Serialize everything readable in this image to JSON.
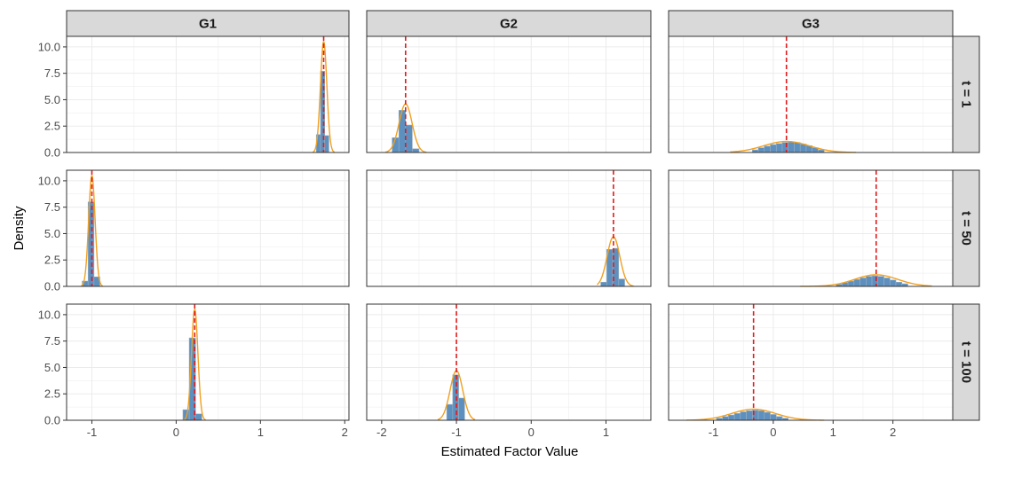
{
  "chart_data": {
    "type": "faceted-histogram-density",
    "xlabel": "Estimated Factor Value",
    "ylabel": "Density",
    "columns": [
      "G1",
      "G2",
      "G3"
    ],
    "rows": [
      "t = 1",
      "t = 50",
      "t = 100"
    ],
    "y_axis": {
      "ylim": [
        0,
        11
      ],
      "ticks": [
        "0.0",
        "2.5",
        "5.0",
        "7.5",
        "10.0"
      ],
      "tick_values": [
        0,
        2.5,
        5,
        7.5,
        10
      ]
    },
    "x_axes": [
      {
        "column": "G1",
        "xlim": [
          -1.3,
          2.05
        ],
        "ticks": [
          "-1",
          "0",
          "1",
          "2"
        ],
        "tick_values": [
          -1,
          0,
          1,
          2
        ]
      },
      {
        "column": "G2",
        "xlim": [
          -2.2,
          1.6
        ],
        "ticks": [
          "-2",
          "-1",
          "0",
          "1"
        ],
        "tick_values": [
          -2,
          -1,
          0,
          1
        ]
      },
      {
        "column": "G3",
        "xlim": [
          -1.75,
          3.0
        ],
        "ticks": [
          "-1",
          "0",
          "1",
          "2"
        ],
        "tick_values": [
          -1,
          0,
          1,
          2
        ]
      }
    ],
    "colors": {
      "bar_fill": "#5d8fbf",
      "bar_border": "#9ab0c2",
      "density_line": "#f0a020",
      "reference_line": "#e31a1c",
      "strip_fill": "#d9d9d9",
      "grid": "#ebebeb"
    },
    "panels": [
      {
        "row": "t = 1",
        "col": "G1",
        "true_value": 1.75,
        "density": {
          "mean": 1.75,
          "sd": 0.038,
          "peak": 10.5,
          "range": [
            1.62,
            1.88
          ]
        },
        "bins": [
          {
            "x0": 1.6625,
            "x1": 1.7125,
            "value": 1.7
          },
          {
            "x0": 1.7125,
            "x1": 1.7625,
            "value": 7.7
          },
          {
            "x0": 1.7625,
            "x1": 1.8125,
            "value": 1.6
          }
        ]
      },
      {
        "row": "t = 1",
        "col": "G2",
        "true_value": -1.68,
        "density": {
          "mean": -1.68,
          "sd": 0.087,
          "peak": 4.6,
          "range": [
            -1.95,
            -1.4
          ]
        },
        "bins": [
          {
            "x0": -1.86,
            "x1": -1.77,
            "value": 1.4
          },
          {
            "x0": -1.77,
            "x1": -1.68,
            "value": 4.0
          },
          {
            "x0": -1.68,
            "x1": -1.59,
            "value": 2.6
          },
          {
            "x0": -1.59,
            "x1": -1.5,
            "value": 0.35
          }
        ]
      },
      {
        "row": "t = 1",
        "col": "G3",
        "true_value": 0.22,
        "density": {
          "mean": 0.22,
          "sd": 0.38,
          "peak": 1.05,
          "range": [
            -0.72,
            1.38
          ]
        },
        "bins": [
          {
            "x0": -0.35,
            "x1": -0.25,
            "value": 0.25
          },
          {
            "x0": -0.25,
            "x1": -0.15,
            "value": 0.45
          },
          {
            "x0": -0.15,
            "x1": -0.05,
            "value": 0.6
          },
          {
            "x0": -0.05,
            "x1": 0.05,
            "value": 0.75
          },
          {
            "x0": 0.05,
            "x1": 0.15,
            "value": 0.85
          },
          {
            "x0": 0.15,
            "x1": 0.25,
            "value": 0.95
          },
          {
            "x0": 0.25,
            "x1": 0.35,
            "value": 1.0
          },
          {
            "x0": 0.35,
            "x1": 0.45,
            "value": 0.95
          },
          {
            "x0": 0.45,
            "x1": 0.55,
            "value": 0.8
          },
          {
            "x0": 0.55,
            "x1": 0.65,
            "value": 0.65
          },
          {
            "x0": 0.65,
            "x1": 0.75,
            "value": 0.45
          },
          {
            "x0": 0.75,
            "x1": 0.85,
            "value": 0.25
          }
        ]
      },
      {
        "row": "t = 50",
        "col": "G1",
        "true_value": -1.0,
        "density": {
          "mean": -1.0,
          "sd": 0.038,
          "peak": 10.5,
          "range": [
            -1.13,
            -0.87
          ]
        },
        "bins": [
          {
            "x0": -1.115,
            "x1": -1.045,
            "value": 0.5
          },
          {
            "x0": -1.045,
            "x1": -0.975,
            "value": 8.0
          },
          {
            "x0": -0.975,
            "x1": -0.905,
            "value": 0.9
          }
        ]
      },
      {
        "row": "t = 50",
        "col": "G2",
        "true_value": 1.1,
        "density": {
          "mean": 1.1,
          "sd": 0.085,
          "peak": 4.7,
          "range": [
            0.88,
            1.37
          ]
        },
        "bins": [
          {
            "x0": 0.93,
            "x1": 1.01,
            "value": 0.4
          },
          {
            "x0": 1.01,
            "x1": 1.09,
            "value": 3.5
          },
          {
            "x0": 1.09,
            "x1": 1.17,
            "value": 3.6
          },
          {
            "x0": 1.17,
            "x1": 1.25,
            "value": 0.7
          }
        ]
      },
      {
        "row": "t = 50",
        "col": "G3",
        "true_value": 1.72,
        "density": {
          "mean": 1.72,
          "sd": 0.36,
          "peak": 1.1,
          "range": [
            0.45,
            2.65
          ]
        },
        "bins": [
          {
            "x0": 1.05,
            "x1": 1.15,
            "value": 0.2
          },
          {
            "x0": 1.15,
            "x1": 1.25,
            "value": 0.35
          },
          {
            "x0": 1.25,
            "x1": 1.35,
            "value": 0.5
          },
          {
            "x0": 1.35,
            "x1": 1.45,
            "value": 0.65
          },
          {
            "x0": 1.45,
            "x1": 1.55,
            "value": 0.8
          },
          {
            "x0": 1.55,
            "x1": 1.65,
            "value": 0.95
          },
          {
            "x0": 1.65,
            "x1": 1.75,
            "value": 1.0
          },
          {
            "x0": 1.75,
            "x1": 1.85,
            "value": 0.95
          },
          {
            "x0": 1.85,
            "x1": 1.95,
            "value": 0.8
          },
          {
            "x0": 1.95,
            "x1": 2.05,
            "value": 0.6
          },
          {
            "x0": 2.05,
            "x1": 2.15,
            "value": 0.4
          },
          {
            "x0": 2.15,
            "x1": 2.25,
            "value": 0.25
          }
        ]
      },
      {
        "row": "t = 100",
        "col": "G1",
        "true_value": 0.22,
        "density": {
          "mean": 0.22,
          "sd": 0.038,
          "peak": 10.5,
          "range": [
            0.09,
            0.35
          ]
        },
        "bins": [
          {
            "x0": 0.08,
            "x1": 0.155,
            "value": 1.0
          },
          {
            "x0": 0.155,
            "x1": 0.23,
            "value": 7.8
          },
          {
            "x0": 0.23,
            "x1": 0.305,
            "value": 0.6
          }
        ]
      },
      {
        "row": "t = 100",
        "col": "G2",
        "true_value": -1.0,
        "density": {
          "mean": -1.0,
          "sd": 0.085,
          "peak": 4.7,
          "range": [
            -1.25,
            -0.75
          ]
        },
        "bins": [
          {
            "x0": -1.13,
            "x1": -1.05,
            "value": 1.5
          },
          {
            "x0": -1.05,
            "x1": -0.97,
            "value": 4.3
          },
          {
            "x0": -0.97,
            "x1": -0.89,
            "value": 2.1
          }
        ]
      },
      {
        "row": "t = 100",
        "col": "G3",
        "true_value": -0.33,
        "density": {
          "mean": -0.33,
          "sd": 0.37,
          "peak": 1.05,
          "range": [
            -1.45,
            0.85
          ]
        },
        "bins": [
          {
            "x0": -0.95,
            "x1": -0.85,
            "value": 0.2
          },
          {
            "x0": -0.85,
            "x1": -0.75,
            "value": 0.35
          },
          {
            "x0": -0.75,
            "x1": -0.65,
            "value": 0.5
          },
          {
            "x0": -0.65,
            "x1": -0.55,
            "value": 0.65
          },
          {
            "x0": -0.55,
            "x1": -0.45,
            "value": 0.8
          },
          {
            "x0": -0.45,
            "x1": -0.35,
            "value": 0.9
          },
          {
            "x0": -0.35,
            "x1": -0.25,
            "value": 0.95
          },
          {
            "x0": -0.25,
            "x1": -0.15,
            "value": 0.9
          },
          {
            "x0": -0.15,
            "x1": -0.05,
            "value": 0.75
          },
          {
            "x0": -0.05,
            "x1": 0.05,
            "value": 0.55
          },
          {
            "x0": 0.05,
            "x1": 0.15,
            "value": 0.35
          },
          {
            "x0": 0.15,
            "x1": 0.25,
            "value": 0.2
          }
        ]
      }
    ]
  }
}
